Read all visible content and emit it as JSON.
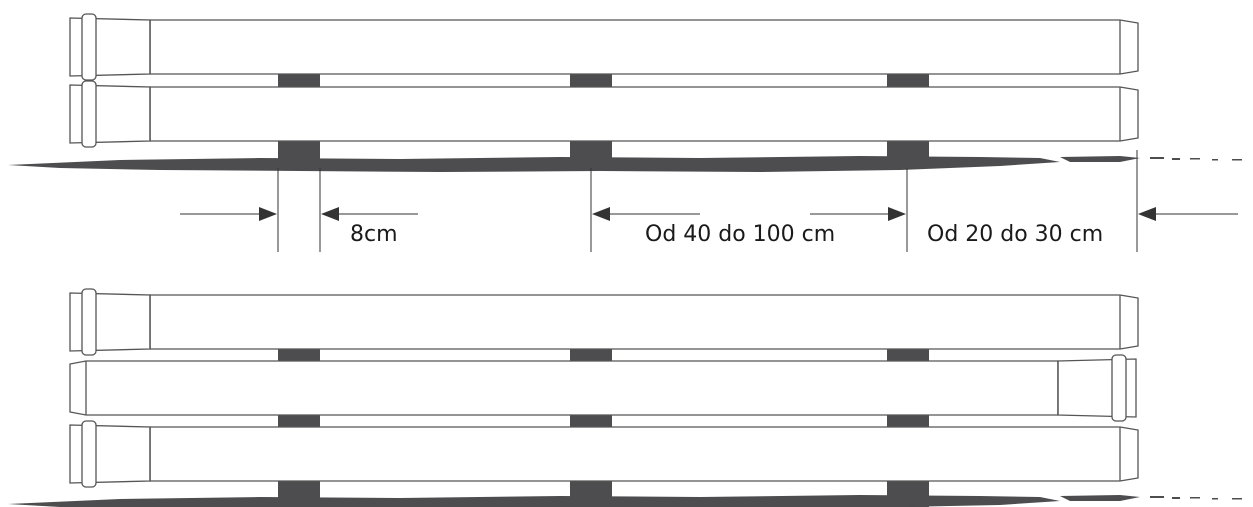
{
  "dimensions": {
    "spacer_width": "8cm",
    "support_spacing": "Od 40 do 100 cm",
    "end_overhang": "Od 20 do 30 cm"
  },
  "colors": {
    "pipe_stroke": "#555555",
    "pipe_fill": "#ffffff",
    "support_block": "#4d4d4f",
    "ground": "#4d4d4f",
    "dimension_line": "#333333",
    "text": "#1a1a1a"
  },
  "stacks": [
    {
      "pipes": [
        "socket-left",
        "socket-left"
      ],
      "supports": 3
    },
    {
      "pipes": [
        "socket-left",
        "socket-right",
        "socket-left"
      ],
      "supports": 3
    }
  ]
}
